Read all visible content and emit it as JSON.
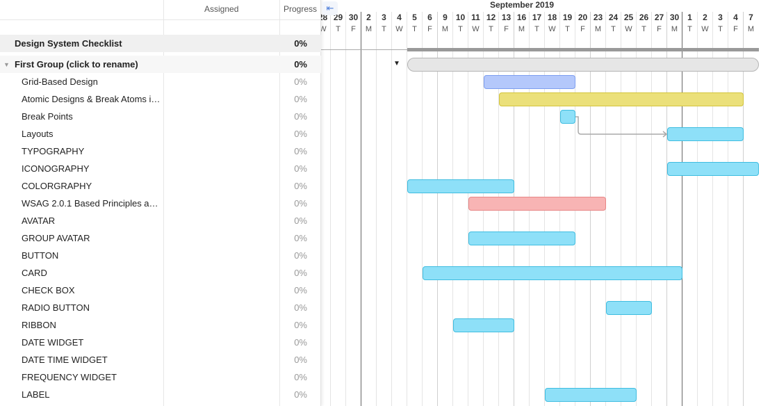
{
  "columns_header": {
    "assigned": "Assigned",
    "progress": "Progress"
  },
  "title_row": {
    "name": "Design System Checklist",
    "progress": "0%"
  },
  "group_row": {
    "name": "First Group (click to rename)",
    "progress": "0%",
    "bar": {
      "start": "2019-09-05",
      "end": "2019-10-07"
    }
  },
  "tasks": [
    {
      "name": "Grid-Based Design",
      "progress": "0%",
      "bar": {
        "start": "2019-09-12",
        "end": "2019-09-19",
        "color": "blue"
      }
    },
    {
      "name": "Atomic Designs & Break Atoms in...",
      "progress": "0%",
      "bar": {
        "start": "2019-09-13",
        "end": "2019-10-04",
        "color": "yellow"
      }
    },
    {
      "name": "Break Points",
      "progress": "0%",
      "bar": {
        "start": "2019-09-19",
        "end": "2019-09-19",
        "color": "cyan"
      }
    },
    {
      "name": "Layouts",
      "progress": "0%",
      "bar": {
        "start": "2019-09-30",
        "end": "2019-10-04",
        "color": "cyan"
      }
    },
    {
      "name": "TYPOGRAPHY",
      "progress": "0%"
    },
    {
      "name": "ICONOGRAPHY",
      "progress": "0%",
      "bar": {
        "start": "2019-09-30",
        "end": "2019-10-07",
        "color": "cyan"
      }
    },
    {
      "name": "COLORGRAPHY",
      "progress": "0%",
      "bar": {
        "start": "2019-09-05",
        "end": "2019-09-13",
        "color": "cyan"
      }
    },
    {
      "name": "WSAG 2.0.1 Based Principles and ...",
      "progress": "0%",
      "bar": {
        "start": "2019-09-11",
        "end": "2019-09-23",
        "color": "red"
      }
    },
    {
      "name": "AVATAR",
      "progress": "0%"
    },
    {
      "name": "GROUP AVATAR",
      "progress": "0%",
      "bar": {
        "start": "2019-09-11",
        "end": "2019-09-19",
        "color": "cyan"
      }
    },
    {
      "name": "BUTTON",
      "progress": "0%"
    },
    {
      "name": "CARD",
      "progress": "0%",
      "bar": {
        "start": "2019-09-06",
        "end": "2019-09-30",
        "color": "cyan"
      }
    },
    {
      "name": "CHECK BOX",
      "progress": "0%"
    },
    {
      "name": "RADIO BUTTON",
      "progress": "0%",
      "bar": {
        "start": "2019-09-24",
        "end": "2019-09-26",
        "color": "cyan"
      }
    },
    {
      "name": "RIBBON",
      "progress": "0%",
      "bar": {
        "start": "2019-09-10",
        "end": "2019-09-13",
        "color": "cyan"
      }
    },
    {
      "name": "DATE WIDGET",
      "progress": "0%"
    },
    {
      "name": "DATE TIME WIDGET",
      "progress": "0%"
    },
    {
      "name": "FREQUENCY WIDGET",
      "progress": "0%"
    },
    {
      "name": "LABEL",
      "progress": "0%",
      "bar": {
        "start": "2019-09-18",
        "end": "2019-09-25",
        "color": "cyan"
      }
    }
  ],
  "dependency": {
    "from": "Break Points",
    "to": "Layouts"
  },
  "timeline": {
    "month_label": "September 2019",
    "days": [
      {
        "date": "2019-08-28",
        "d": "28",
        "w": "W"
      },
      {
        "date": "2019-08-29",
        "d": "29",
        "w": "T"
      },
      {
        "date": "2019-08-30",
        "d": "30",
        "w": "F"
      },
      {
        "date": "2019-09-02",
        "d": "2",
        "w": "M"
      },
      {
        "date": "2019-09-03",
        "d": "3",
        "w": "T"
      },
      {
        "date": "2019-09-04",
        "d": "4",
        "w": "W"
      },
      {
        "date": "2019-09-05",
        "d": "5",
        "w": "T"
      },
      {
        "date": "2019-09-06",
        "d": "6",
        "w": "F"
      },
      {
        "date": "2019-09-09",
        "d": "9",
        "w": "M"
      },
      {
        "date": "2019-09-10",
        "d": "10",
        "w": "T"
      },
      {
        "date": "2019-09-11",
        "d": "11",
        "w": "W"
      },
      {
        "date": "2019-09-12",
        "d": "12",
        "w": "T"
      },
      {
        "date": "2019-09-13",
        "d": "13",
        "w": "F"
      },
      {
        "date": "2019-09-16",
        "d": "16",
        "w": "M"
      },
      {
        "date": "2019-09-17",
        "d": "17",
        "w": "T"
      },
      {
        "date": "2019-09-18",
        "d": "18",
        "w": "W"
      },
      {
        "date": "2019-09-19",
        "d": "19",
        "w": "T"
      },
      {
        "date": "2019-09-20",
        "d": "20",
        "w": "F"
      },
      {
        "date": "2019-09-23",
        "d": "23",
        "w": "M"
      },
      {
        "date": "2019-09-24",
        "d": "24",
        "w": "T"
      },
      {
        "date": "2019-09-25",
        "d": "25",
        "w": "W"
      },
      {
        "date": "2019-09-26",
        "d": "26",
        "w": "T"
      },
      {
        "date": "2019-09-27",
        "d": "27",
        "w": "F"
      },
      {
        "date": "2019-09-30",
        "d": "30",
        "w": "M"
      },
      {
        "date": "2019-10-01",
        "d": "1",
        "w": "T"
      },
      {
        "date": "2019-10-02",
        "d": "2",
        "w": "W"
      },
      {
        "date": "2019-10-03",
        "d": "3",
        "w": "T"
      },
      {
        "date": "2019-10-04",
        "d": "4",
        "w": "F"
      },
      {
        "date": "2019-10-07",
        "d": "7",
        "w": "M"
      }
    ]
  },
  "colors": {
    "blue": {
      "fill": "#b4c8fb",
      "border": "#7d9ef0"
    },
    "yellow": {
      "fill": "#ebe07a",
      "border": "#d3c43a"
    },
    "cyan": {
      "fill": "#8ee0f8",
      "border": "#3fbde0"
    },
    "red": {
      "fill": "#f8b4b4",
      "border": "#e88686"
    },
    "group": {
      "fill": "#e6e6e6",
      "border": "#b5b5b5"
    },
    "summary": "#999999"
  },
  "icons": {
    "collapse_panel": "arrow-left-to-line-icon",
    "group_toggle": "triangle-down-icon"
  }
}
